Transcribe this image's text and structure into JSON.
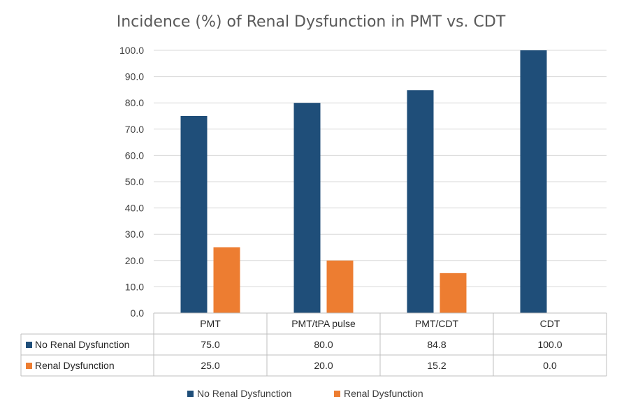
{
  "chart_data": {
    "type": "bar",
    "title": "Incidence (%) of Renal Dysfunction in PMT vs. CDT",
    "categories": [
      "PMT",
      "PMT/tPA pulse",
      "PMT/CDT",
      "CDT"
    ],
    "series": [
      {
        "name": "No Renal Dysfunction",
        "values": [
          75.0,
          80.0,
          84.8,
          100.0
        ],
        "labels": [
          "75.0",
          "80.0",
          "84.8",
          "100.0"
        ],
        "color": "#1f4e79"
      },
      {
        "name": "Renal Dysfunction",
        "values": [
          25.0,
          20.0,
          15.2,
          0.0
        ],
        "labels": [
          "25.0",
          "20.0",
          "15.2",
          "0.0"
        ],
        "color": "#ed7d31"
      }
    ],
    "ylim": [
      0,
      100
    ],
    "yticks": [
      "0.0",
      "10.0",
      "20.0",
      "30.0",
      "40.0",
      "50.0",
      "60.0",
      "70.0",
      "80.0",
      "90.0",
      "100.0"
    ],
    "grid": true,
    "data_table": true,
    "legend_position": "bottom"
  }
}
